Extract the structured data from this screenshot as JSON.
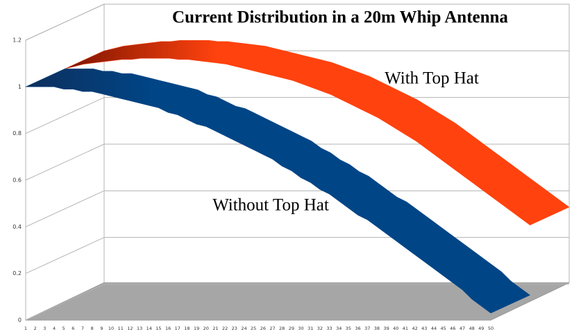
{
  "chart_data": {
    "type": "ribbon3d",
    "title": "Current Distribution in a 20m Whip Antenna",
    "categories": [
      "1",
      "2",
      "3",
      "4",
      "5",
      "6",
      "7",
      "8",
      "9",
      "10",
      "11",
      "12",
      "13",
      "14",
      "15",
      "16",
      "17",
      "18",
      "19",
      "20",
      "21",
      "22",
      "23",
      "24",
      "25",
      "26",
      "27",
      "28",
      "29",
      "30",
      "31",
      "32",
      "33",
      "34",
      "35",
      "36",
      "37",
      "38",
      "39",
      "40",
      "41",
      "42",
      "43",
      "44",
      "45",
      "46",
      "47",
      "48",
      "49",
      "50"
    ],
    "ylim": [
      0,
      1.2
    ],
    "yticks": [
      0,
      0.2,
      0.4,
      0.6,
      0.8,
      1,
      1.2
    ],
    "grid": true,
    "series": [
      {
        "name": "Without Top Hat",
        "color": "#004586",
        "values": [
          1.0,
          1.0,
          1.0,
          1.0,
          0.99,
          0.99,
          0.98,
          0.98,
          0.97,
          0.96,
          0.95,
          0.94,
          0.93,
          0.92,
          0.91,
          0.89,
          0.88,
          0.86,
          0.84,
          0.83,
          0.81,
          0.79,
          0.77,
          0.75,
          0.73,
          0.71,
          0.69,
          0.66,
          0.64,
          0.61,
          0.59,
          0.56,
          0.54,
          0.51,
          0.48,
          0.45,
          0.43,
          0.4,
          0.37,
          0.34,
          0.31,
          0.28,
          0.25,
          0.22,
          0.19,
          0.16,
          0.13,
          0.09,
          0.06,
          0.03
        ]
      },
      {
        "name": "With Top Hat",
        "color": "#ff420e",
        "values": [
          1.0,
          1.01,
          1.02,
          1.025,
          1.03,
          1.035,
          1.04,
          1.04,
          1.045,
          1.045,
          1.045,
          1.045,
          1.04,
          1.04,
          1.035,
          1.03,
          1.025,
          1.02,
          1.01,
          1.0,
          0.99,
          0.98,
          0.97,
          0.96,
          0.95,
          0.935,
          0.92,
          0.905,
          0.89,
          0.87,
          0.85,
          0.83,
          0.81,
          0.79,
          0.765,
          0.74,
          0.715,
          0.69,
          0.66,
          0.63,
          0.6,
          0.57,
          0.54,
          0.51,
          0.48,
          0.45,
          0.42,
          0.39,
          0.36,
          0.33
        ]
      }
    ]
  }
}
